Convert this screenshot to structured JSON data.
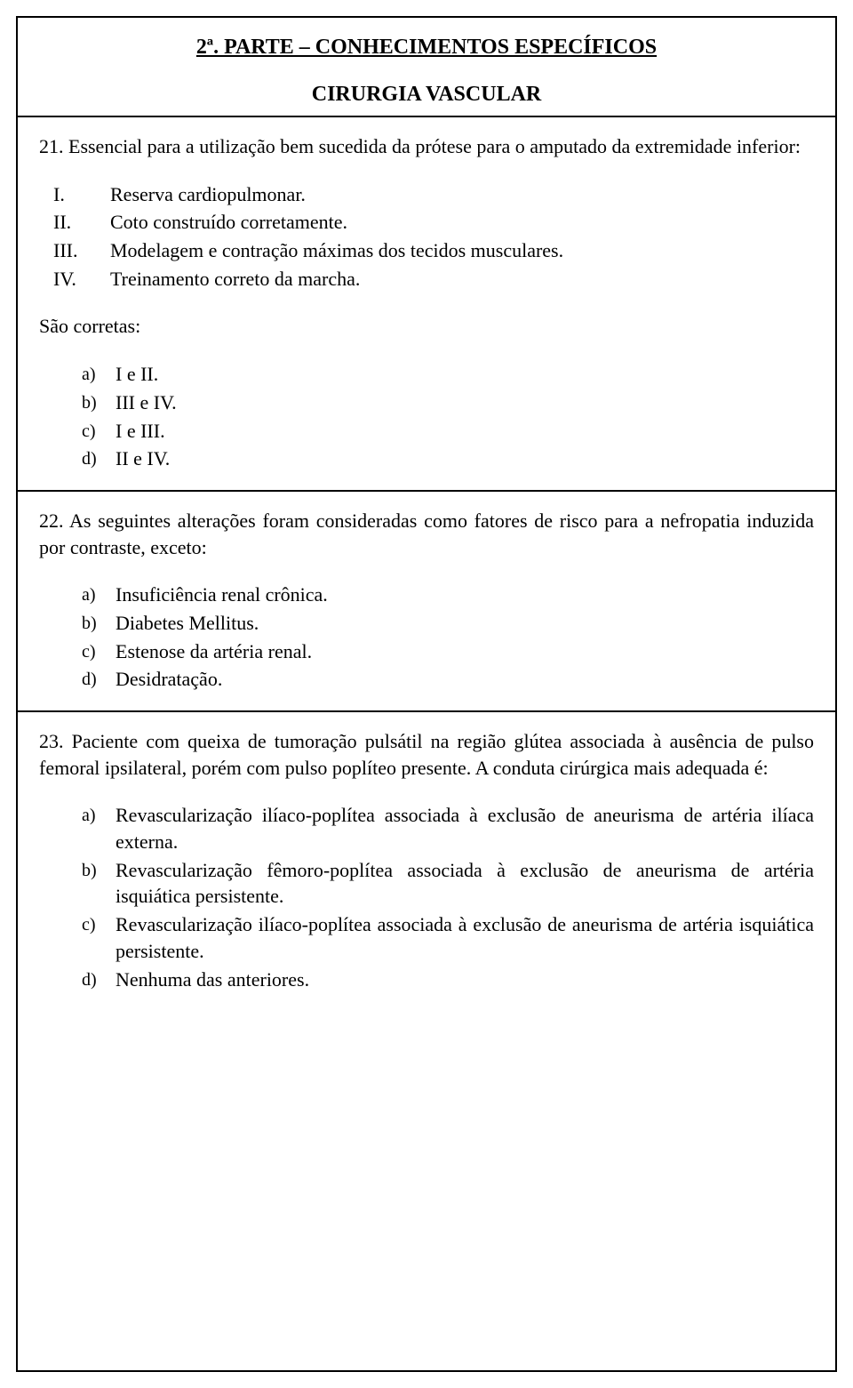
{
  "header": {
    "part_title": "2ª. PARTE – CONHECIMENTOS ESPECÍFICOS",
    "subject": "CIRURGIA VASCULAR"
  },
  "q21": {
    "text": "21. Essencial para a utilização bem sucedida da prótese para o amputado da extremidade inferior:",
    "romans": [
      {
        "num": "I.",
        "text": "Reserva cardiopulmonar."
      },
      {
        "num": "II.",
        "text": "Coto construído corretamente."
      },
      {
        "num": "III.",
        "text": "Modelagem e contração máximas dos tecidos musculares."
      },
      {
        "num": "IV.",
        "text": "Treinamento correto da marcha."
      }
    ],
    "correct_label": "São corretas:",
    "options": [
      {
        "letter": "a)",
        "text": "I e II."
      },
      {
        "letter": "b)",
        "text": "III e IV."
      },
      {
        "letter": "c)",
        "text": "I e III."
      },
      {
        "letter": "d)",
        "text": "II e IV."
      }
    ]
  },
  "q22": {
    "text": "22. As seguintes alterações foram consideradas como fatores de risco para a nefropatia induzida por contraste, exceto:",
    "options": [
      {
        "letter": "a)",
        "text": "Insuficiência renal crônica."
      },
      {
        "letter": "b)",
        "text": "Diabetes Mellitus."
      },
      {
        "letter": "c)",
        "text": "Estenose da artéria renal."
      },
      {
        "letter": "d)",
        "text": "Desidratação."
      }
    ]
  },
  "q23": {
    "text": "23. Paciente com queixa de tumoração pulsátil na região glútea associada à ausência de pulso femoral ipsilateral, porém com pulso poplíteo presente. A conduta cirúrgica mais adequada é:",
    "options": [
      {
        "letter": "a)",
        "text": "Revascularização ilíaco-poplítea associada à exclusão de aneurisma de artéria ilíaca externa."
      },
      {
        "letter": "b)",
        "text": "Revascularização fêmoro-poplítea associada à exclusão de aneurisma de artéria isquiática persistente."
      },
      {
        "letter": "c)",
        "text": "Revascularização ilíaco-poplítea associada à exclusão de aneurisma de artéria isquiática persistente."
      },
      {
        "letter": "d)",
        "text": "Nenhuma das anteriores."
      }
    ]
  }
}
